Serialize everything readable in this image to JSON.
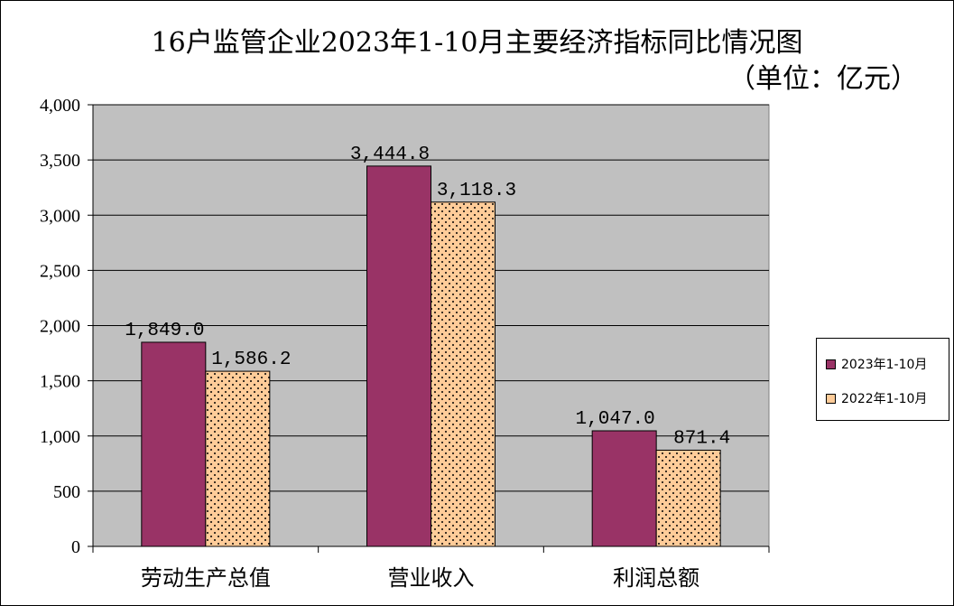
{
  "chart_data": {
    "type": "bar",
    "title": "16户监管企业2023年1-10月主要经济指标同比情况图",
    "subtitle": "（单位：亿元）",
    "categories": [
      "劳动生产总值",
      "营业收入",
      "利润总额"
    ],
    "series": [
      {
        "name": "2023年1-10月",
        "values": [
          1849.0,
          3444.8,
          1047.0
        ],
        "labels": [
          "1,849.0",
          "3,444.8",
          "1,047.0"
        ],
        "color": "#993366"
      },
      {
        "name": "2022年1-10月",
        "values": [
          1586.2,
          3118.3,
          871.4
        ],
        "labels": [
          "1,586.2",
          "3,118.3",
          "871.4"
        ],
        "color": "#FFCC99"
      }
    ],
    "ylim": [
      0,
      4000
    ],
    "yticks": [
      0,
      500,
      1000,
      1500,
      2000,
      2500,
      3000,
      3500,
      4000
    ],
    "ytick_labels": [
      "0",
      "500",
      "1,000",
      "1,500",
      "2,000",
      "2,500",
      "3,000",
      "3,500",
      "4,000"
    ],
    "grid": true,
    "plot_background": "#C0C0C0",
    "legend_position": "right"
  }
}
